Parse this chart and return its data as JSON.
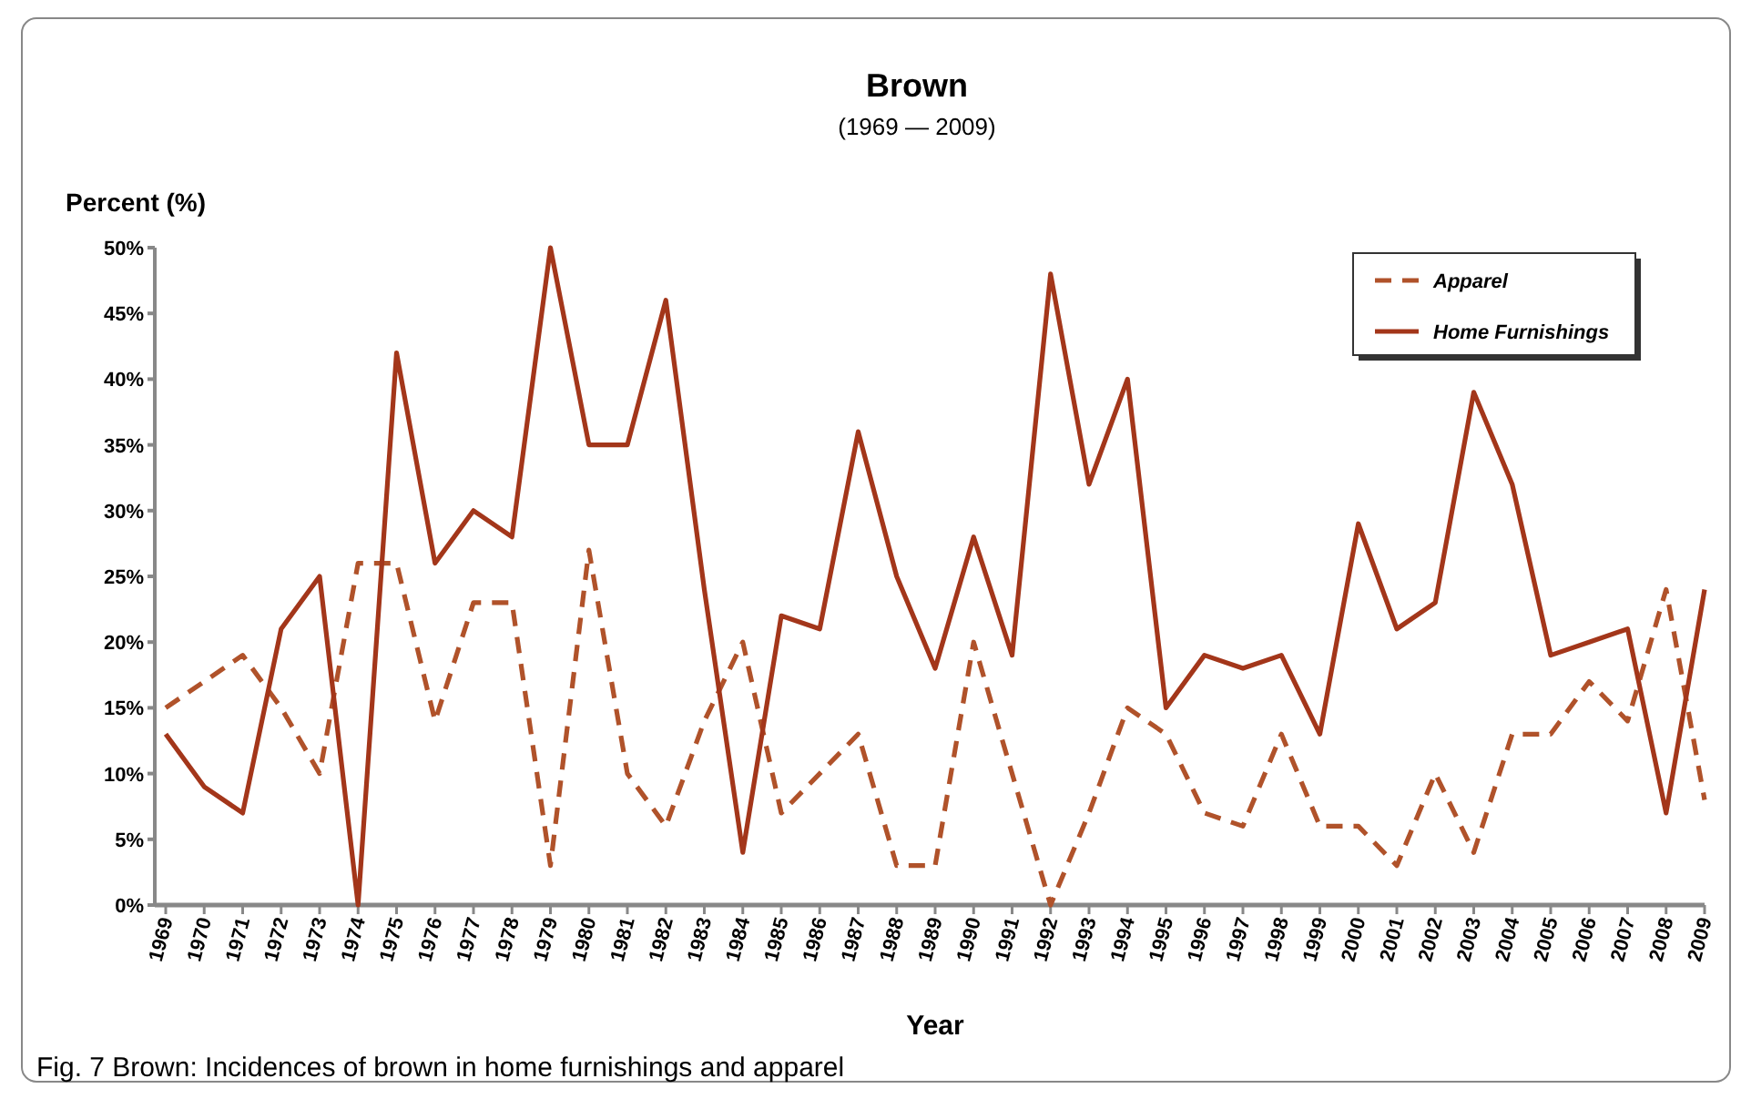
{
  "chart_data": {
    "type": "line",
    "title": "Brown",
    "subtitle": "(1969 — 2009)",
    "ylabel": "Percent (%)",
    "xlabel": "Year",
    "annotations": [
      "Fig. 7  Brown: Incidences of brown in home furnishings and apparel"
    ],
    "categories": [
      "1969",
      "1970",
      "1971",
      "1972",
      "1973",
      "1974",
      "1975",
      "1976",
      "1977",
      "1978",
      "1979",
      "1980",
      "1981",
      "1982",
      "1983",
      "1984",
      "1985",
      "1986",
      "1987",
      "1988",
      "1989",
      "1990",
      "1991",
      "1992",
      "1993",
      "1994",
      "1995",
      "1996",
      "1997",
      "1998",
      "1999",
      "2000",
      "2001",
      "2002",
      "2003",
      "2004",
      "2005",
      "2006",
      "2007",
      "2008",
      "2009"
    ],
    "series": [
      {
        "name": "Apparel",
        "color": "#b0522a",
        "line_style": "dashed",
        "values": [
          15,
          17,
          19,
          15,
          10,
          26,
          26,
          14,
          23,
          23,
          3,
          27,
          10,
          6,
          14,
          20,
          7,
          10,
          13,
          3,
          3,
          20,
          10,
          0,
          7,
          15,
          13,
          7,
          6,
          13,
          6,
          6,
          3,
          10,
          4,
          13,
          13,
          17,
          14,
          24,
          8
        ]
      },
      {
        "name": "Home Furnishings",
        "color": "#a3361a",
        "line_style": "solid",
        "values": [
          13,
          9,
          7,
          21,
          25,
          0,
          42,
          26,
          30,
          28,
          50,
          35,
          35,
          46,
          24,
          4,
          22,
          21,
          36,
          25,
          18,
          28,
          19,
          48,
          32,
          40,
          15,
          19,
          18,
          19,
          13,
          29,
          21,
          23,
          39,
          32,
          19,
          20,
          21,
          7,
          24
        ]
      }
    ],
    "ylim": [
      0,
      50
    ],
    "yticks": [
      {
        "value": 0,
        "label": "0%"
      },
      {
        "value": 5,
        "label": "5%"
      },
      {
        "value": 10,
        "label": "10%"
      },
      {
        "value": 15,
        "label": "15%"
      },
      {
        "value": 20,
        "label": "20%"
      },
      {
        "value": 25,
        "label": "25%"
      },
      {
        "value": 30,
        "label": "30%"
      },
      {
        "value": 35,
        "label": "35%"
      },
      {
        "value": 40,
        "label": "40%"
      },
      {
        "value": 45,
        "label": "45%"
      },
      {
        "value": 50,
        "label": "50%"
      }
    ],
    "grid": false,
    "legend": "top right",
    "marker": "none"
  }
}
